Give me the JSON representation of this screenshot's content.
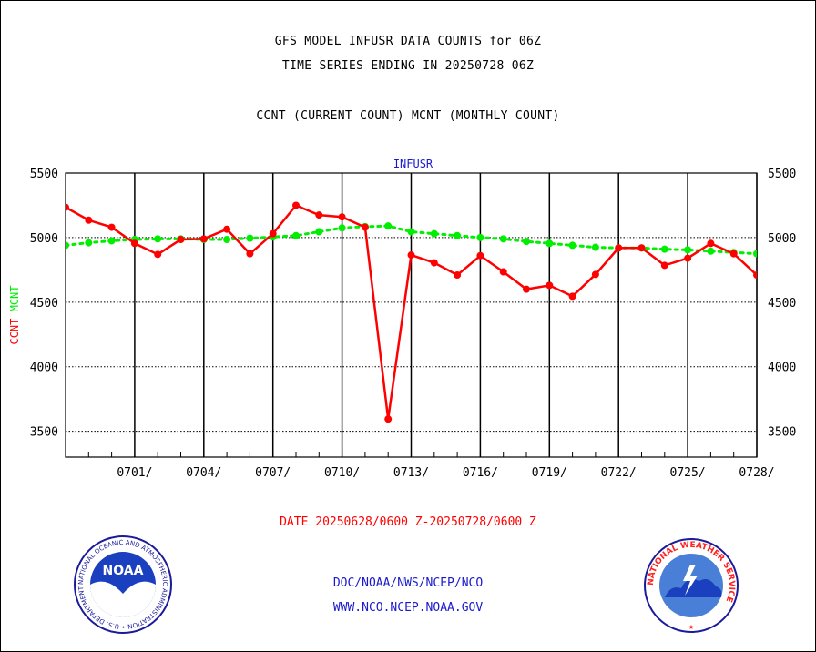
{
  "chart_data": {
    "type": "line",
    "title_lines": [
      "GFS MODEL INFUSR DATA COUNTS for 06Z",
      "TIME SERIES ENDING IN 20250728 06Z",
      "CCNT (CURRENT COUNT) MCNT (MONTHLY COUNT)"
    ],
    "series_name": "INFUSR",
    "ylabel_parts": [
      "CCNT",
      "MCNT"
    ],
    "xlabel": "DATE 20250628/0600 Z-20250728/0600 Z",
    "ylim": [
      3300,
      5500
    ],
    "y_ticks": [
      3500,
      4000,
      4500,
      5000,
      5500
    ],
    "y_tick_labels": [
      "3500",
      "4000",
      "4500",
      "5000",
      "5500"
    ],
    "x_days": 30,
    "x_tick_labels": [
      "0701/",
      "0704/",
      "0707/",
      "0710/",
      "0713/",
      "0716/",
      "0719/",
      "0722/",
      "0725/",
      "0728/"
    ],
    "x_tick_days": [
      3,
      6,
      9,
      12,
      15,
      18,
      21,
      24,
      27,
      30
    ],
    "series": [
      {
        "name": "CCNT",
        "color": "#ff0000",
        "x": [
          0,
          1,
          2,
          3,
          4,
          5,
          6,
          7,
          8,
          9,
          10,
          11,
          12,
          13,
          14,
          15,
          16,
          17,
          18,
          19,
          20,
          21,
          22,
          23,
          24,
          25,
          26,
          27,
          28,
          29,
          30
        ],
        "values": [
          5235,
          5135,
          5080,
          4955,
          4870,
          4985,
          4990,
          5065,
          4875,
          5030,
          5250,
          5175,
          5160,
          5080,
          3595,
          4865,
          4805,
          4710,
          4860,
          4735,
          4600,
          4630,
          4545,
          4715,
          4920,
          4920,
          4785,
          4840,
          4955,
          4875,
          4710
        ]
      },
      {
        "name": "MCNT",
        "color": "#00ee00",
        "x": [
          0,
          1,
          2,
          3,
          4,
          5,
          6,
          7,
          8,
          9,
          10,
          11,
          12,
          13,
          14,
          15,
          16,
          17,
          18,
          19,
          20,
          21,
          22,
          23,
          24,
          25,
          26,
          27,
          28,
          29,
          30
        ],
        "values": [
          4940,
          4960,
          4975,
          4985,
          4990,
          4990,
          4985,
          4985,
          4995,
          5005,
          5015,
          5045,
          5075,
          5085,
          5090,
          5045,
          5030,
          5015,
          5000,
          4990,
          4970,
          4955,
          4940,
          4925,
          4920,
          4920,
          4910,
          4905,
          4895,
          4885,
          4875
        ]
      }
    ]
  },
  "footer": {
    "line1": "DOC/NOAA/NWS/NCEP/NCO",
    "line2": "WWW.NCO.NCEP.NOAA.GOV"
  },
  "logos": {
    "noaa_text": "NOAA",
    "noaa_ring": "NATIONAL OCEANIC AND ATMOSPHERIC ADMINISTRATION • U.S. DEPARTMENT OF COMMERCE •",
    "nws_ring": "NATIONAL WEATHER SERVICE"
  },
  "colors": {
    "ccnt": "#ff0000",
    "mcnt": "#00ee00",
    "blue_text": "#1a1acc",
    "red_text": "#ff0000"
  }
}
